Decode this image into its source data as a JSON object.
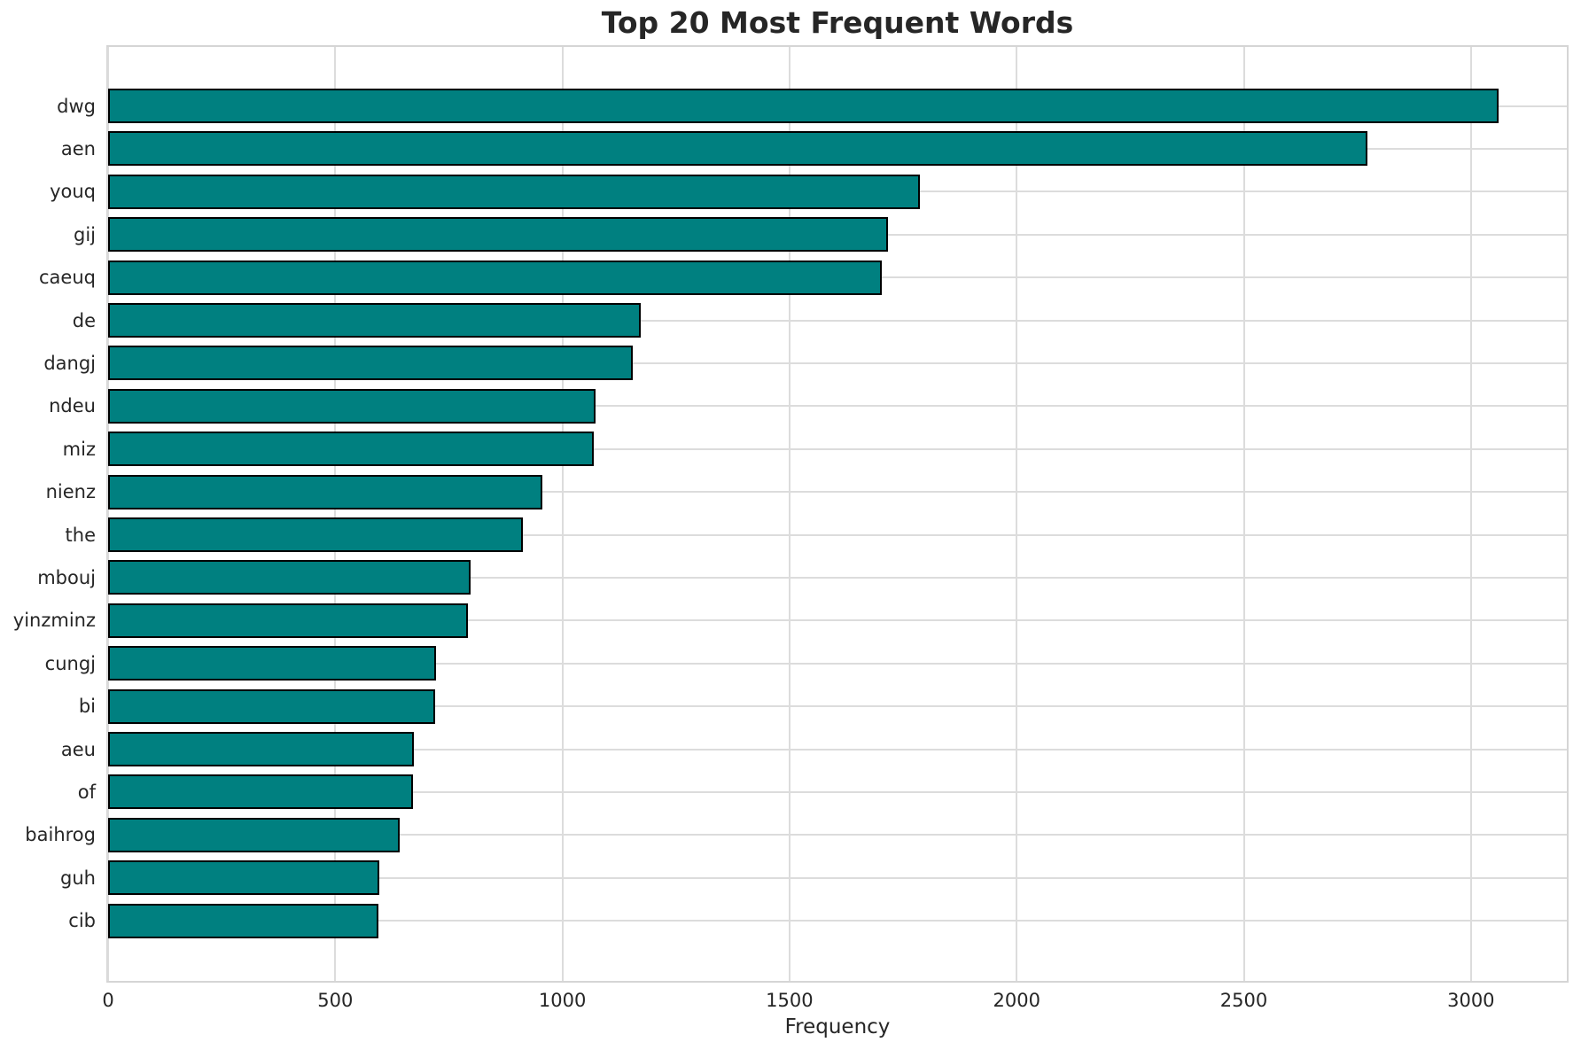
{
  "chart_data": {
    "type": "bar",
    "orientation": "horizontal",
    "title": "Top 20 Most Frequent Words",
    "xlabel": "Frequency",
    "ylabel": "",
    "categories": [
      "dwg",
      "aen",
      "youq",
      "gij",
      "caeuq",
      "de",
      "dangj",
      "ndeu",
      "miz",
      "nienz",
      "the",
      "mbouj",
      "yinzminz",
      "cungj",
      "bi",
      "aeu",
      "of",
      "baihrog",
      "guh",
      "cib"
    ],
    "values": [
      3060,
      2772,
      1786,
      1716,
      1704,
      1172,
      1154,
      1072,
      1070,
      955,
      913,
      798,
      792,
      721,
      720,
      673,
      671,
      642,
      597,
      595
    ],
    "xticks": [
      0,
      500,
      1000,
      1500,
      2000,
      2500,
      3000
    ],
    "xlim": [
      0,
      3211
    ],
    "grid": true,
    "legend": "none",
    "bar_color": "#008080",
    "bar_edge_color": "#000000",
    "grid_color": "#dcdcdc",
    "spine_color": "#d5d5d5",
    "text_color": "#262626",
    "background_color": "#ffffff"
  }
}
